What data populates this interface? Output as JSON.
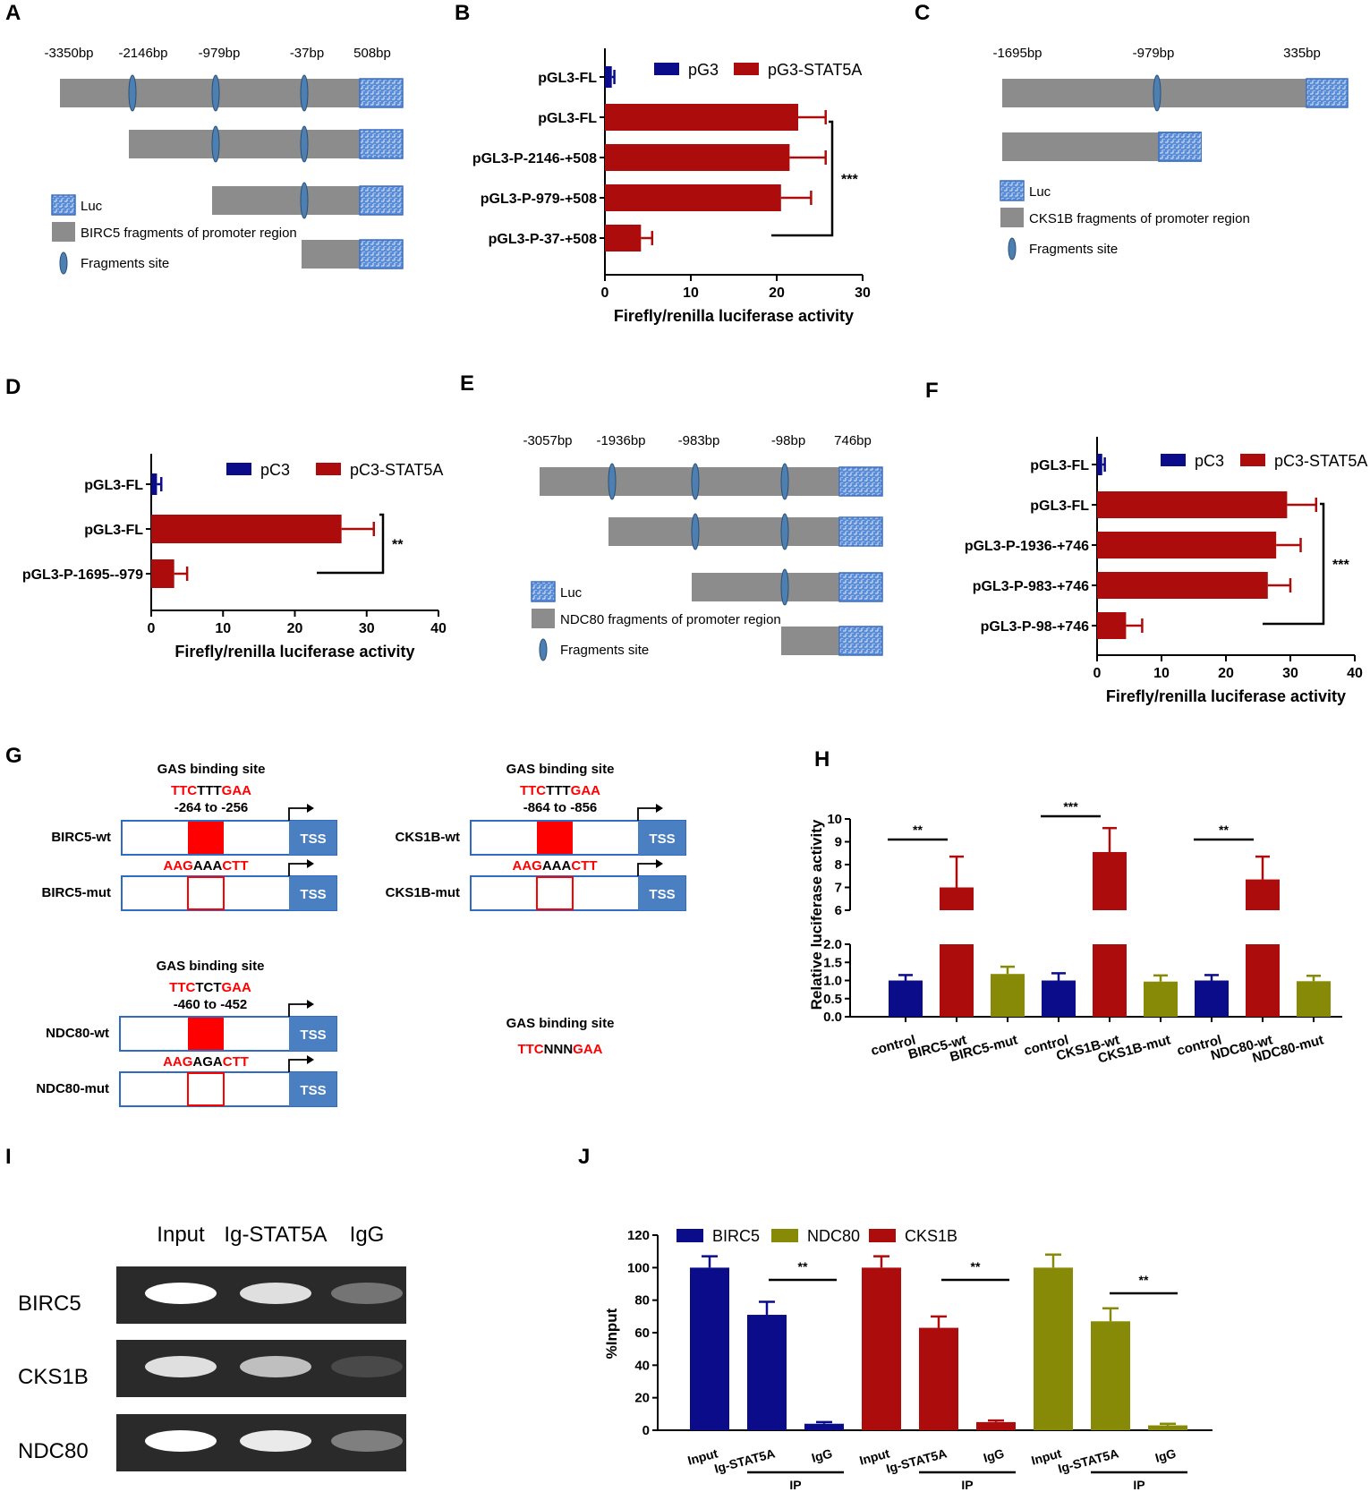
{
  "colors": {
    "navy": "#0b0c8a",
    "red": "#ad0c0c",
    "olive": "#878a06",
    "gray": "#8c8c8c",
    "luc": "#5b8dd6",
    "tss": "#4a7fc1",
    "bright_red": "#ff0000"
  },
  "panel_labels": [
    "A",
    "B",
    "C",
    "D",
    "E",
    "F",
    "G",
    "H",
    "I",
    "J"
  ],
  "panel_a": {
    "positions": [
      "-3350bp",
      "-2146bp",
      "-979bp",
      "-37bp",
      "508bp"
    ],
    "legend": [
      "Luc",
      "BIRC5 fragments of promoter region",
      "Fragments site"
    ]
  },
  "panel_c": {
    "positions": [
      "-1695bp",
      "-979bp",
      "335bp"
    ],
    "legend": [
      "Luc",
      "CKS1B fragments of promoter region",
      "Fragments site"
    ]
  },
  "panel_e": {
    "positions": [
      "-3057bp",
      "-1936bp",
      "-983bp",
      "-98bp",
      "746bp"
    ],
    "legend": [
      "Luc",
      "NDC80 fragments of promoter region",
      "Fragments site"
    ]
  },
  "panel_g": {
    "gas_title": "GAS binding site",
    "constructs": [
      {
        "name": "BIRC5",
        "wt_label": "BIRC5-wt",
        "mut_label": "BIRC5-mut",
        "wt_seq": [
          "TTC",
          "TTT",
          "GAA"
        ],
        "mut_seq": [
          "AAG",
          "AAA",
          "CTT"
        ],
        "range": "-264 to -256"
      },
      {
        "name": "CKS1B",
        "wt_label": "CKS1B-wt",
        "mut_label": "CKS1B-mut",
        "wt_seq": [
          "TTC",
          "TTT",
          "GAA"
        ],
        "mut_seq": [
          "AAG",
          "AAA",
          "CTT"
        ],
        "range": "-864 to -856"
      },
      {
        "name": "NDC80",
        "wt_label": "NDC80-wt",
        "mut_label": "NDC80-mut",
        "wt_seq": [
          "TTC",
          "TCT",
          "GAA"
        ],
        "mut_seq": [
          "AAG",
          "AGA",
          "CTT"
        ],
        "range": "-460 to -452"
      }
    ],
    "tss_label": "TSS",
    "consensus": [
      "TTC",
      "NNN",
      "GAA"
    ]
  },
  "panel_i": {
    "lanes": [
      "Input",
      "Ig-STAT5A",
      "IgG"
    ],
    "rows": [
      "BIRC5",
      "CKS1B",
      "NDC80"
    ]
  },
  "chart_data": [
    {
      "panel": "B",
      "type": "bar",
      "orientation": "horizontal",
      "categories": [
        "pGL3-FL",
        "pGL3-FL",
        "pGL3-P-2146-+508",
        "pGL3-P-979-+508",
        "pGL3-P-37-+508"
      ],
      "values": [
        0.8,
        22.5,
        21.5,
        20.5,
        4.2
      ],
      "errors": [
        0.3,
        3.2,
        4.2,
        3.5,
        1.3
      ],
      "series_of_bar": [
        0,
        1,
        1,
        1,
        1
      ],
      "legend": [
        "pG3",
        "pG3-STAT5A"
      ],
      "xlabel": "Firefly/renilla luciferase activity",
      "xlim": [
        0,
        30
      ],
      "xticks": [
        "0",
        "10",
        "20",
        "30"
      ],
      "significance": "***"
    },
    {
      "panel": "D",
      "type": "bar",
      "orientation": "horizontal",
      "categories": [
        "pGL3-FL",
        "pGL3-FL",
        "pGL3-P-1695--979"
      ],
      "values": [
        0.8,
        26.5,
        3.2
      ],
      "errors": [
        0.6,
        4.5,
        1.8
      ],
      "series_of_bar": [
        0,
        1,
        1
      ],
      "legend": [
        "pC3",
        "pC3-STAT5A"
      ],
      "xlabel": "Firefly/renilla luciferase activity",
      "xlim": [
        0,
        40
      ],
      "xticks": [
        "0",
        "10",
        "20",
        "30",
        "40"
      ],
      "significance": "**"
    },
    {
      "panel": "F",
      "type": "bar",
      "orientation": "horizontal",
      "categories": [
        "pGL3-FL",
        "pGL3-FL",
        "pGL3-P-1936-+746",
        "pGL3-P-983-+746",
        "pGL3-P-98-+746"
      ],
      "values": [
        0.8,
        29.5,
        27.8,
        26.5,
        4.5
      ],
      "errors": [
        0.4,
        4.5,
        3.8,
        3.5,
        2.5
      ],
      "series_of_bar": [
        0,
        1,
        1,
        1,
        1
      ],
      "legend": [
        "pC3",
        "pC3-STAT5A"
      ],
      "xlabel": "Firefly/renilla luciferase activity",
      "xlim": [
        0,
        40
      ],
      "xticks": [
        "0",
        "10",
        "20",
        "30",
        "40"
      ],
      "significance": "***"
    },
    {
      "panel": "H",
      "type": "bar",
      "categories": [
        "control",
        "BIRC5-wt",
        "BIRC5-mut",
        "control",
        "CKS1B-wt",
        "CKS1B-mut",
        "control",
        "NDC80-wt",
        "NDC80-mut"
      ],
      "values": [
        1.0,
        7.0,
        1.18,
        1.0,
        8.55,
        0.97,
        1.0,
        7.35,
        0.98
      ],
      "errors": [
        0.15,
        1.35,
        0.2,
        0.2,
        1.05,
        0.17,
        0.15,
        1.0,
        0.15
      ],
      "color_of_bar": [
        0,
        1,
        2,
        0,
        1,
        2,
        0,
        1,
        2
      ],
      "ylabel": "Relative luciferase activity",
      "ylim_lower": [
        0,
        2.0
      ],
      "ylim_upper": [
        6,
        10
      ],
      "yticks_lower": [
        "0.0",
        "0.5",
        "1.0",
        "1.5",
        "2.0"
      ],
      "yticks_upper": [
        "6",
        "7",
        "8",
        "9",
        "10"
      ],
      "significance": [
        "**",
        "***",
        "**"
      ]
    },
    {
      "panel": "J",
      "type": "bar",
      "categories": [
        "Input",
        "Ig-STAT5A",
        "IgG",
        "Input",
        "Ig-STAT5A",
        "IgG",
        "Input",
        "Ig-STAT5A",
        "IgG"
      ],
      "values": [
        100,
        71,
        4,
        100,
        63,
        5,
        100,
        67,
        3
      ],
      "errors": [
        7,
        8,
        1,
        7,
        7,
        1,
        8,
        8,
        1
      ],
      "color_of_bar": [
        0,
        0,
        0,
        1,
        1,
        1,
        2,
        2,
        2
      ],
      "legend": [
        "BIRC5",
        "NDC80",
        "CKS1B"
      ],
      "legend_colors": [
        0,
        2,
        1
      ],
      "ylabel": "%Input",
      "ylim": [
        0,
        120
      ],
      "yticks": [
        "0",
        "20",
        "40",
        "60",
        "80",
        "100",
        "120"
      ],
      "group_label": "IP",
      "significance": [
        "**",
        "**",
        "**"
      ]
    }
  ]
}
